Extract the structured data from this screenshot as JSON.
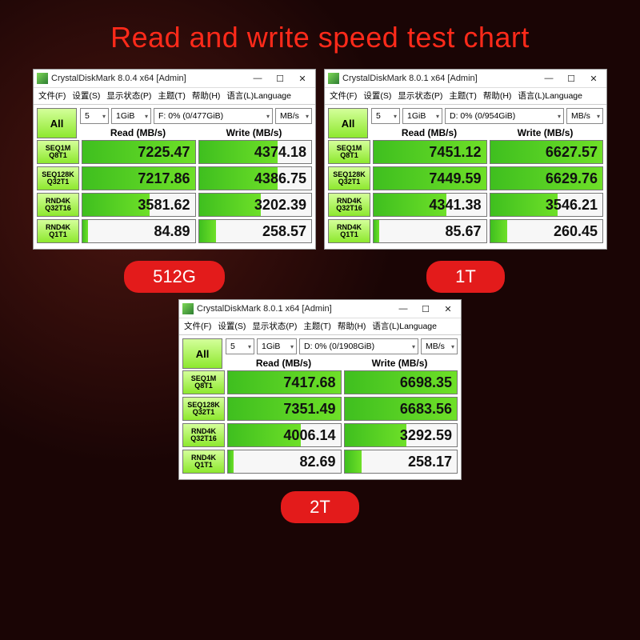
{
  "page": {
    "title": "Read and write speed test chart"
  },
  "colors": {
    "background": "#1a0505",
    "title": "#ff2a1a",
    "pill_bg": "#e31b1b",
    "pill_text": "#ffffff",
    "green_bar_start": "#3fbf1f",
    "green_bar_end": "#6ee028",
    "btn_green_start": "#d4ff9a",
    "btn_green_end": "#8de82e",
    "cell_border": "#777777",
    "window_bg": "#ffffff"
  },
  "menu": {
    "file": "文件(F)",
    "settings": "设置(S)",
    "profile": "显示状态(P)",
    "theme": "主题(T)",
    "help": "帮助(H)",
    "language": "语言(L)Language"
  },
  "common": {
    "all_btn": "All",
    "count_combo": "5",
    "size_combo": "1GiB",
    "unit_combo": "MB/s",
    "read_header": "Read (MB/s)",
    "write_header": "Write (MB/s)",
    "min_icon": "—",
    "max_icon": "☐",
    "close_icon": "✕",
    "rows": [
      {
        "l1": "SEQ1M",
        "l2": "Q8T1"
      },
      {
        "l1": "SEQ128K",
        "l2": "Q32T1"
      },
      {
        "l1": "RND4K",
        "l2": "Q32T16"
      },
      {
        "l1": "RND4K",
        "l2": "Q1T1"
      }
    ]
  },
  "panels": [
    {
      "capacity": "512G",
      "title": "CrystalDiskMark 8.0.4 x64 [Admin]",
      "drive": "F: 0% (0/477GiB)",
      "rows": [
        {
          "read": "7225.47",
          "write": "4374.18",
          "rfill": "full",
          "wfill": "w70"
        },
        {
          "read": "7217.86",
          "write": "4386.75",
          "rfill": "full",
          "wfill": "w70"
        },
        {
          "read": "3581.62",
          "write": "3202.39",
          "rfill": "w60",
          "wfill": "w55"
        },
        {
          "read": "84.89",
          "write": "258.57",
          "rfill": "w5",
          "wfill": "w15"
        }
      ]
    },
    {
      "capacity": "1T",
      "title": "CrystalDiskMark 8.0.1 x64 [Admin]",
      "drive": "D: 0% (0/954GiB)",
      "rows": [
        {
          "read": "7451.12",
          "write": "6627.57",
          "rfill": "full",
          "wfill": "full"
        },
        {
          "read": "7449.59",
          "write": "6629.76",
          "rfill": "full",
          "wfill": "full"
        },
        {
          "read": "4341.38",
          "write": "3546.21",
          "rfill": "w65",
          "wfill": "w60"
        },
        {
          "read": "85.67",
          "write": "260.45",
          "rfill": "w5",
          "wfill": "w15"
        }
      ]
    },
    {
      "capacity": "2T",
      "title": "CrystalDiskMark 8.0.1 x64 [Admin]",
      "drive": "D: 0% (0/1908GiB)",
      "rows": [
        {
          "read": "7417.68",
          "write": "6698.35",
          "rfill": "full",
          "wfill": "full"
        },
        {
          "read": "7351.49",
          "write": "6683.56",
          "rfill": "full",
          "wfill": "full"
        },
        {
          "read": "4006.14",
          "write": "3292.59",
          "rfill": "w65",
          "wfill": "w55"
        },
        {
          "read": "82.69",
          "write": "258.17",
          "rfill": "w5",
          "wfill": "w15"
        }
      ]
    }
  ]
}
